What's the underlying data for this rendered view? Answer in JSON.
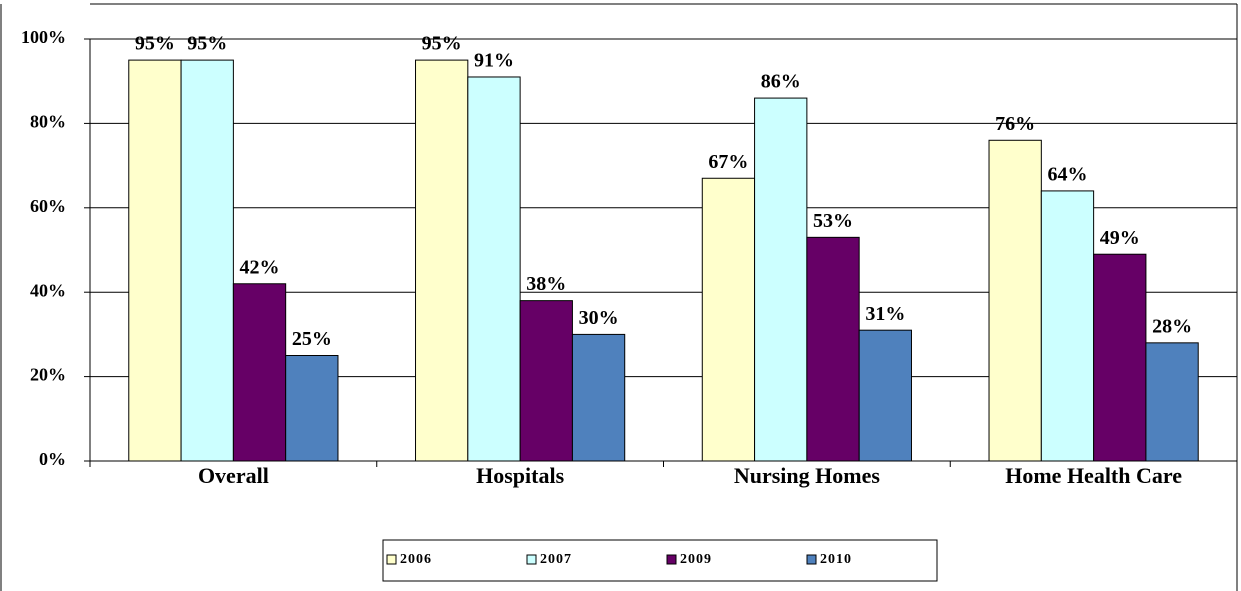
{
  "chart_data": {
    "type": "bar",
    "categories": [
      "Overall",
      "Hospitals",
      "Nursing Homes",
      "Home Health Care"
    ],
    "series": [
      {
        "name": "2006",
        "color": "#ffffcc",
        "values": [
          95,
          95,
          67,
          76
        ],
        "value_labels": [
          "95%",
          "95%",
          "67%",
          "76%"
        ]
      },
      {
        "name": "2007",
        "color": "#ccffff",
        "values": [
          95,
          91,
          86,
          64
        ],
        "value_labels": [
          "95%",
          "91%",
          "86%",
          "64%"
        ]
      },
      {
        "name": "2009",
        "color": "#660066",
        "values": [
          42,
          38,
          53,
          49
        ],
        "value_labels": [
          "42%",
          "38%",
          "53%",
          "49%"
        ]
      },
      {
        "name": "2010",
        "color": "#4f81bd",
        "values": [
          25,
          30,
          31,
          28
        ],
        "value_labels": [
          "25%",
          "30%",
          "31%",
          "28%"
        ]
      }
    ],
    "ylim": [
      0,
      100
    ],
    "yticks": [
      {
        "value": 0,
        "label": "0%"
      },
      {
        "value": 20,
        "label": "20%"
      },
      {
        "value": 40,
        "label": "40%"
      },
      {
        "value": 60,
        "label": "60%"
      },
      {
        "value": 80,
        "label": "80%"
      },
      {
        "value": 100,
        "label": "100%"
      }
    ],
    "grid": true,
    "legend": "bottom"
  }
}
